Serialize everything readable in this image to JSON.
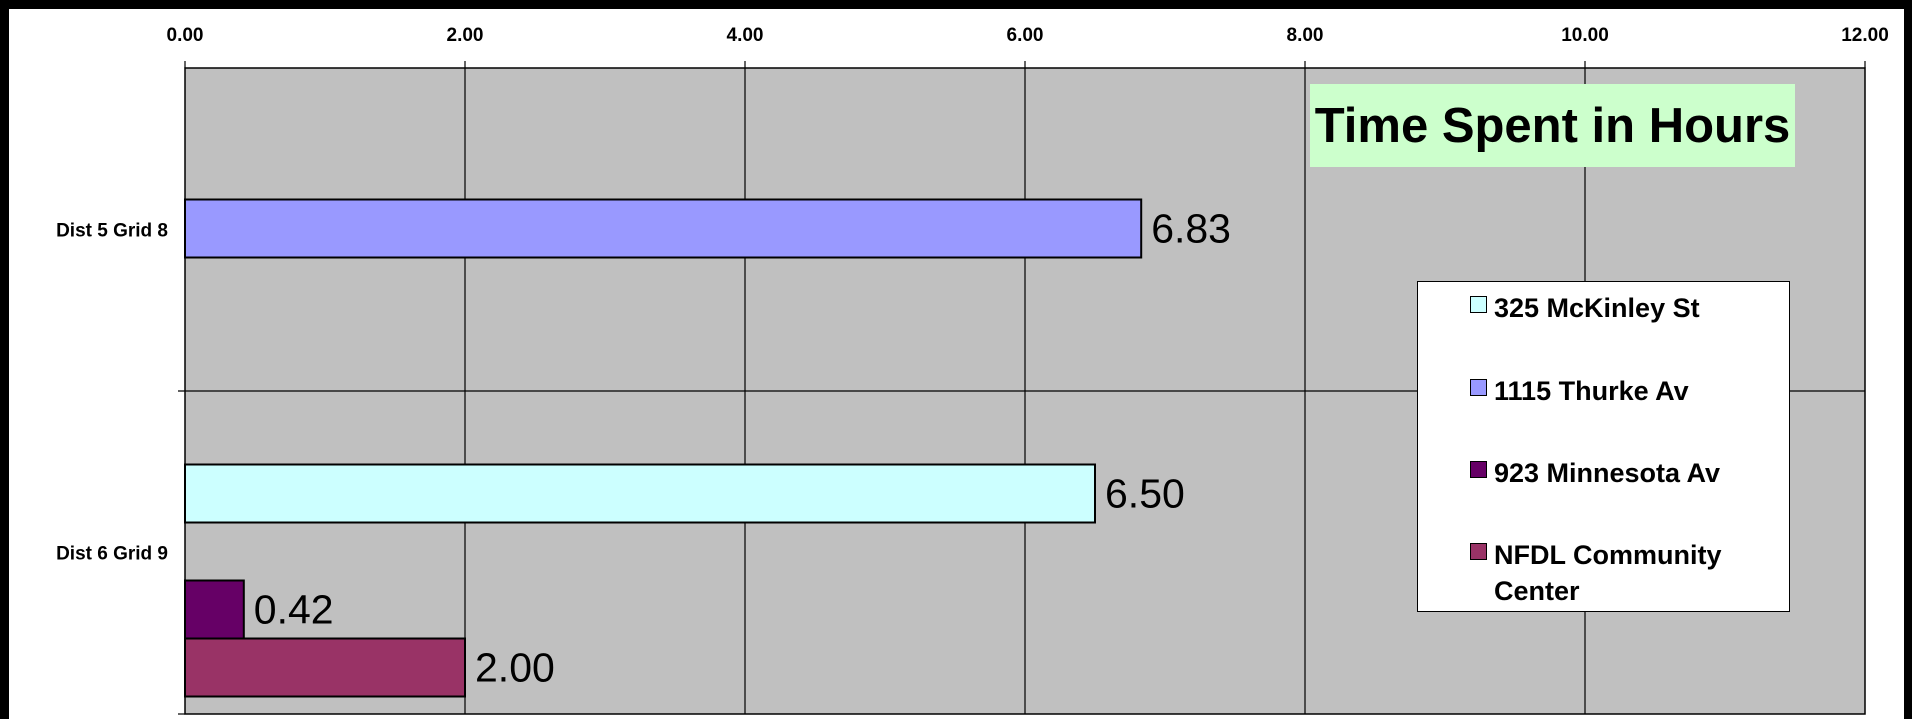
{
  "chart_data": {
    "type": "bar",
    "orientation": "horizontal",
    "title": "Time Spent in Hours",
    "categories": [
      "Dist 5 Grid 8",
      "Dist 6 Grid 9"
    ],
    "series": [
      {
        "name": "325 McKinley St",
        "color": "#ccffff",
        "values": [
          null,
          6.5
        ],
        "labels": [
          null,
          "6.50"
        ]
      },
      {
        "name": "1115 Thurke Av",
        "color": "#9999ff",
        "values": [
          6.83,
          null
        ],
        "labels": [
          "6.83",
          null
        ]
      },
      {
        "name": "923 Minnesota Av",
        "color": "#660066",
        "values": [
          null,
          0.42
        ],
        "labels": [
          null,
          "0.42"
        ]
      },
      {
        "name": "NFDL Community Center",
        "color": "#993366",
        "values": [
          null,
          2.0
        ],
        "labels": [
          null,
          "2.00"
        ]
      }
    ],
    "xlim": [
      0,
      12
    ],
    "x_ticks": [
      "0.00",
      "2.00",
      "4.00",
      "6.00",
      "8.00",
      "10.00",
      "12.00"
    ],
    "x_axis_position": "top",
    "grid": true,
    "plot_background": "#c0c0c0",
    "legend_position": "right",
    "xlabel": "",
    "ylabel": ""
  },
  "legend": {
    "items": [
      {
        "label_lines": [
          "325 McKinley St"
        ],
        "color": "#ccffff"
      },
      {
        "label_lines": [
          "1115 Thurke Av"
        ],
        "color": "#9999ff"
      },
      {
        "label_lines": [
          "923 Minnesota Av"
        ],
        "color": "#660066"
      },
      {
        "label_lines": [
          "NFDL Community",
          "Center"
        ],
        "color": "#993366"
      }
    ]
  }
}
